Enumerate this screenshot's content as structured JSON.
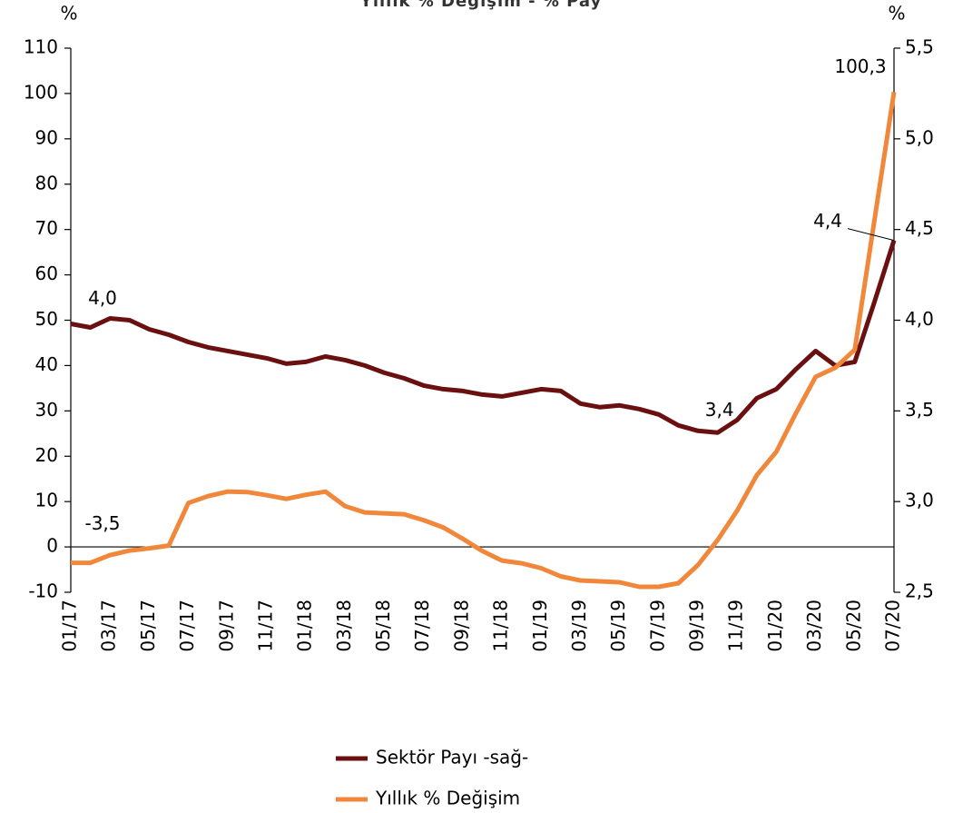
{
  "chart_data": {
    "type": "line",
    "title": "Yıllık % Değişim - % Pay",
    "y_label": "%",
    "y2_label": "%",
    "categories": [
      "01/17",
      null,
      "03/17",
      null,
      "05/17",
      null,
      "07/17",
      null,
      "09/17",
      null,
      "11/17",
      null,
      "01/18",
      null,
      "03/18",
      null,
      "05/18",
      null,
      "07/18",
      null,
      "09/18",
      null,
      "11/18",
      null,
      "01/19",
      null,
      "03/19",
      null,
      "05/19",
      null,
      "07/19",
      null,
      "09/19",
      null,
      "11/19",
      null,
      "01/20",
      null,
      "03/20",
      null,
      "05/20",
      null,
      "07/20"
    ],
    "series": [
      {
        "name": "Sektör Payı -sağ-",
        "color": "#6b1010",
        "axis": "y2",
        "values": [
          3.98,
          3.96,
          4.01,
          4.0,
          3.95,
          3.92,
          3.88,
          3.85,
          3.83,
          3.81,
          3.79,
          3.76,
          3.77,
          3.8,
          3.78,
          3.75,
          3.71,
          3.68,
          3.64,
          3.62,
          3.61,
          3.59,
          3.58,
          3.6,
          3.62,
          3.61,
          3.54,
          3.52,
          3.53,
          3.51,
          3.48,
          3.42,
          3.39,
          3.38,
          3.45,
          3.57,
          3.62,
          3.73,
          3.83,
          3.75,
          3.77,
          4.1,
          4.44
        ],
        "value_labels": [
          "4,0",
          null,
          null,
          null,
          null,
          null,
          null,
          null,
          null,
          null,
          null,
          null,
          null,
          null,
          null,
          null,
          null,
          null,
          null,
          null,
          null,
          null,
          null,
          null,
          null,
          null,
          null,
          null,
          null,
          null,
          null,
          null,
          null,
          "3,4",
          null,
          null,
          null,
          null,
          null,
          null,
          null,
          null,
          "4,4"
        ]
      },
      {
        "name": "Yıllık % Değişim",
        "color": "#f0873a",
        "values": [
          -3.5,
          -3.5,
          -1.8,
          -0.8,
          -0.3,
          0.3,
          9.7,
          11.2,
          12.2,
          12.1,
          11.4,
          10.6,
          11.5,
          12.2,
          9.0,
          7.6,
          7.4,
          7.2,
          5.9,
          4.3,
          1.8,
          -0.9,
          -3.0,
          -3.6,
          -4.7,
          -6.5,
          -7.4,
          -7.6,
          -7.8,
          -8.8,
          -8.8,
          -8.0,
          -4.0,
          1.5,
          8.0,
          15.8,
          21.0,
          29.5,
          37.5,
          39.5,
          43.5,
          72,
          100.3
        ],
        "value_labels": [
          "-3,5",
          null,
          null,
          null,
          null,
          null,
          null,
          null,
          null,
          null,
          null,
          null,
          null,
          null,
          null,
          null,
          null,
          null,
          null,
          null,
          null,
          null,
          null,
          null,
          null,
          null,
          null,
          null,
          null,
          null,
          null,
          null,
          null,
          null,
          null,
          null,
          null,
          null,
          null,
          null,
          null,
          null,
          "100,3"
        ]
      }
    ],
    "ylim": [
      -10,
      110
    ],
    "yticks": [
      -10,
      0,
      10,
      20,
      30,
      40,
      50,
      60,
      70,
      80,
      90,
      100,
      110
    ],
    "y2lim": [
      2.5,
      5.5
    ],
    "y2ticks": [
      {
        "value": 2.5,
        "label": "2,5"
      },
      {
        "value": 3.0,
        "label": "3,0"
      },
      {
        "value": 3.5,
        "label": "3,5"
      },
      {
        "value": 4.0,
        "label": "4,0"
      },
      {
        "value": 4.5,
        "label": "4,5"
      },
      {
        "value": 5.0,
        "label": "5,0"
      },
      {
        "value": 5.5,
        "label": "5,5"
      }
    ],
    "grid": false,
    "legend": "bottom"
  }
}
